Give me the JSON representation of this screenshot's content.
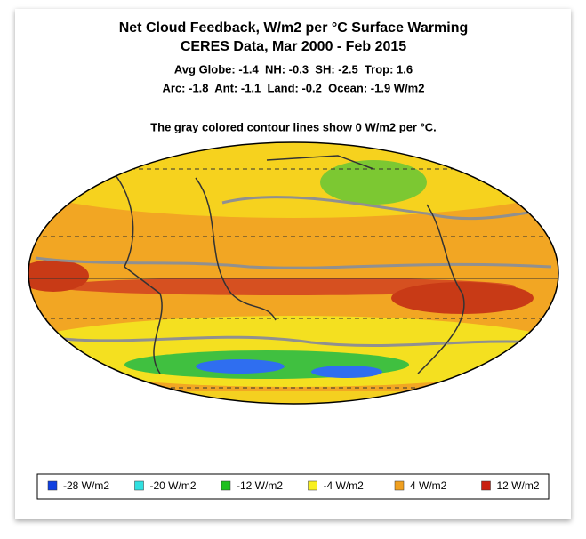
{
  "header": {
    "title": "Net Cloud Feedback, W/m2 per °C Surface Warming",
    "subtitle": "CERES Data, Mar 2000 - Feb 2015",
    "stats_line_1": "Avg Globe: -1.4  NH: -0.3  SH: -2.5  Trop: 1.6",
    "stats_line_2": "Arc: -1.8  Ant: -1.1  Land: -0.2  Ocean: -1.9 W/m2",
    "note": "The gray colored contour lines show 0 W/m2 per °C."
  },
  "legend": {
    "items": [
      {
        "label": "-28 W/m2",
        "color": "#1040e0"
      },
      {
        "label": "-20 W/m2",
        "color": "#30e0e0"
      },
      {
        "label": "-12 W/m2",
        "color": "#20c020"
      },
      {
        "label": "-4 W/m2",
        "color": "#f8f020"
      },
      {
        "label": "4 W/m2",
        "color": "#f0a020"
      },
      {
        "label": "12 W/m2",
        "color": "#c82010"
      }
    ]
  }
}
